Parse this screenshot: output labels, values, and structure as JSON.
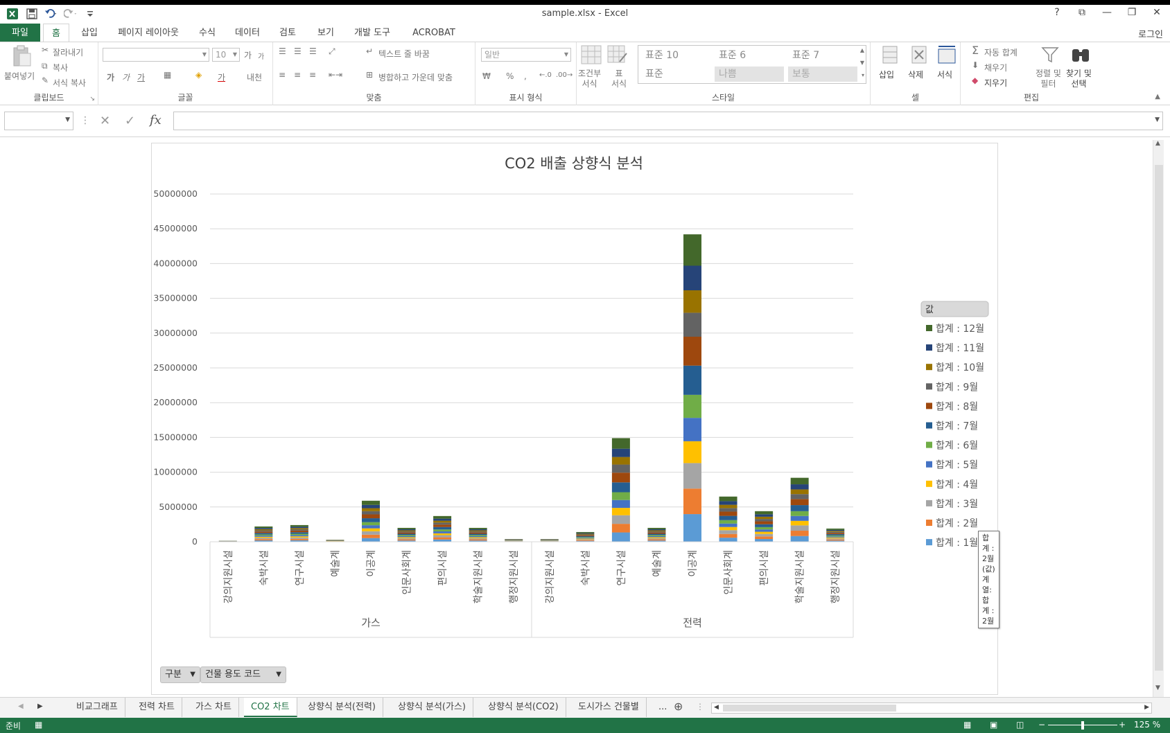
{
  "window": {
    "title": "sample.xlsx - Excel",
    "help": "?",
    "controls": [
      "⧉",
      "—",
      "❐",
      "✕"
    ]
  },
  "tabs": {
    "file": "파일",
    "items": [
      "홈",
      "삽입",
      "페이지 레이아웃",
      "수식",
      "데이터",
      "검토",
      "보기",
      "개발 도구",
      "ACROBAT"
    ],
    "login": "로그인"
  },
  "ribbon": {
    "clipboard": {
      "paste": "붙여넣기",
      "cut": "잘라내기",
      "copy": "복사",
      "format_painter": "서식 복사",
      "label": "클립보드"
    },
    "font": {
      "size": "10",
      "label": "글꼴",
      "grow": "가",
      "shrink": "가",
      "bold": "가",
      "italic": "가",
      "underline": "가",
      "color": "가",
      "phonetic": "내천"
    },
    "alignment": {
      "wrap": "텍스트 줄 바꿈",
      "merge": "병합하고 가운데 맞춤",
      "label": "맞춤"
    },
    "number": {
      "format": "일반",
      "percent": "%",
      "comma": ",",
      "label": "표시 형식"
    },
    "styles": {
      "conditional": "조건부\n서식",
      "table": "표\n서식",
      "cells": [
        "표준 10",
        "표준 6",
        "표준 7",
        "표준",
        "나쁨",
        "보통"
      ],
      "label": "스타일"
    },
    "cells": {
      "insert": "삽입",
      "delete": "삭제",
      "format": "서식",
      "label": "셀"
    },
    "editing": {
      "autosum": "자동 합계",
      "fill": "채우기",
      "clear": "지우기",
      "sort": "정렬 및\n필터",
      "find": "찾기 및\n선택",
      "label": "편집"
    }
  },
  "formula_bar": {
    "name_box": "",
    "formula": "",
    "fx": "fx"
  },
  "chart_data": {
    "type": "bar",
    "stacked": true,
    "title": "CO2 배출 상향식 분석",
    "ylim": [
      0,
      50000000
    ],
    "yticks": [
      "0",
      "5000000",
      "10000000",
      "15000000",
      "20000000",
      "25000000",
      "30000000",
      "35000000",
      "40000000",
      "45000000",
      "50000000"
    ],
    "groups": [
      {
        "name": "가스",
        "categories": [
          "강의지원시설",
          "숙박시설",
          "연구시설",
          "예술계",
          "이공계",
          "인문사회계",
          "편의시설",
          "학술지원시설",
          "행정지원시설"
        ]
      },
      {
        "name": "전력",
        "categories": [
          "강의지원시설",
          "숙박시설",
          "연구시설",
          "예술계",
          "이공계",
          "인문사회계",
          "편의시설",
          "학술지원시설",
          "행정지원시설"
        ]
      }
    ],
    "totals": [
      150000,
      2200000,
      2400000,
      300000,
      5900000,
      2000000,
      3700000,
      2000000,
      400000,
      400000,
      1400000,
      14900000,
      2000000,
      44200000,
      6500000,
      4400000,
      9200000,
      1900000
    ],
    "series": [
      {
        "name": "합계 : 1월",
        "color": "#5b9bd5"
      },
      {
        "name": "합계 : 2월",
        "color": "#ed7d31"
      },
      {
        "name": "합계 : 3월",
        "color": "#a5a5a5"
      },
      {
        "name": "합계 : 4월",
        "color": "#ffc000"
      },
      {
        "name": "합계 : 5월",
        "color": "#4472c4"
      },
      {
        "name": "합계 : 6월",
        "color": "#70ad47"
      },
      {
        "name": "합계 : 7월",
        "color": "#255e91"
      },
      {
        "name": "합계 : 8월",
        "color": "#9e480e"
      },
      {
        "name": "합계 : 9월",
        "color": "#636363"
      },
      {
        "name": "합계 : 10월",
        "color": "#997300"
      },
      {
        "name": "합계 : 11월",
        "color": "#264478"
      },
      {
        "name": "합계 : 12월",
        "color": "#43682b"
      }
    ],
    "monthly_fractions": [
      0.09,
      0.083,
      0.083,
      0.071,
      0.076,
      0.075,
      0.095,
      0.094,
      0.078,
      0.073,
      0.08,
      0.102
    ],
    "legend": {
      "title": "값",
      "position": "right"
    }
  },
  "pivot_buttons": [
    "구분",
    "건물 용도 코드"
  ],
  "tooltip": {
    "line1": "합계 : 2월(값)",
    "line2": "계열: 합계 : 2월"
  },
  "sheet_tabs": [
    "비교그래프",
    "전력 차트",
    "가스 차트",
    "CO2 차트",
    "상향식 분석(전력)",
    "상향식 분석(가스)",
    "상향식 분석(CO2)",
    "도시가스 건물별"
  ],
  "active_sheet": "CO2 차트",
  "more_tabs": "...",
  "status": {
    "ready": "준비",
    "zoom": "125 %"
  }
}
